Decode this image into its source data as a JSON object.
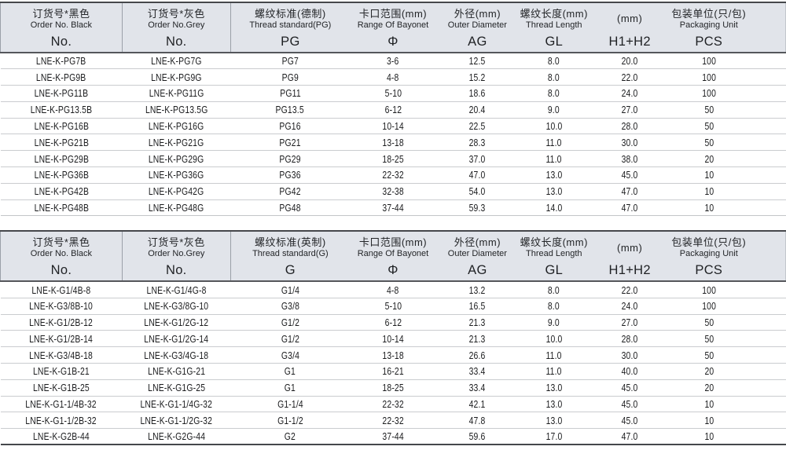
{
  "colors": {
    "header_bg": "#e1e4ea",
    "dark_border": "#45474b",
    "row_line": "#cacccf",
    "text": "#1b1c1e"
  },
  "tables": [
    {
      "name": "pg-thread-table",
      "columns": [
        {
          "cn": "订货号*黑色",
          "en": "Order No. Black",
          "code": "No."
        },
        {
          "cn": "订货号*灰色",
          "en": "Order No.Grey",
          "code": "No."
        },
        {
          "cn": "螺纹标准(德制)",
          "en": "Thread standard(PG)",
          "code": "PG"
        },
        {
          "cn": "卡口范围(mm)",
          "en": "Range Of Bayonet",
          "code": "Φ"
        },
        {
          "cn": "外径(mm)",
          "en": "Outer Diameter",
          "code": "AG"
        },
        {
          "cn": "螺纹长度(mm)",
          "en": "Thread Length",
          "code": "GL"
        },
        {
          "cn": "(mm)",
          "en": "",
          "code": "H1+H2"
        },
        {
          "cn": "包装单位(只/包)",
          "en": "Packaging Unit",
          "code": "PCS"
        }
      ],
      "rows": [
        [
          "LNE-K-PG7B",
          "LNE-K-PG7G",
          "PG7",
          "3-6",
          "12.5",
          "8.0",
          "20.0",
          "100"
        ],
        [
          "LNE-K-PG9B",
          "LNE-K-PG9G",
          "PG9",
          "4-8",
          "15.2",
          "8.0",
          "22.0",
          "100"
        ],
        [
          "LNE-K-PG11B",
          "LNE-K-PG11G",
          "PG11",
          "5-10",
          "18.6",
          "8.0",
          "24.0",
          "100"
        ],
        [
          "LNE-K-PG13.5B",
          "LNE-K-PG13.5G",
          "PG13.5",
          "6-12",
          "20.4",
          "9.0",
          "27.0",
          "50"
        ],
        [
          "LNE-K-PG16B",
          "LNE-K-PG16G",
          "PG16",
          "10-14",
          "22.5",
          "10.0",
          "28.0",
          "50"
        ],
        [
          "LNE-K-PG21B",
          "LNE-K-PG21G",
          "PG21",
          "13-18",
          "28.3",
          "11.0",
          "30.0",
          "50"
        ],
        [
          "LNE-K-PG29B",
          "LNE-K-PG29G",
          "PG29",
          "18-25",
          "37.0",
          "11.0",
          "38.0",
          "20"
        ],
        [
          "LNE-K-PG36B",
          "LNE-K-PG36G",
          "PG36",
          "22-32",
          "47.0",
          "13.0",
          "45.0",
          "10"
        ],
        [
          "LNE-K-PG42B",
          "LNE-K-PG42G",
          "PG42",
          "32-38",
          "54.0",
          "13.0",
          "47.0",
          "10"
        ],
        [
          "LNE-K-PG48B",
          "LNE-K-PG48G",
          "PG48",
          "37-44",
          "59.3",
          "14.0",
          "47.0",
          "10"
        ]
      ]
    },
    {
      "name": "g-thread-table",
      "columns": [
        {
          "cn": "订货号*黑色",
          "en": "Order No. Black",
          "code": "No."
        },
        {
          "cn": "订货号*灰色",
          "en": "Order No.Grey",
          "code": "No."
        },
        {
          "cn": "螺纹标准(英制)",
          "en": "Thread standard(G)",
          "code": "G"
        },
        {
          "cn": "卡口范围(mm)",
          "en": "Range Of Bayonet",
          "code": "Φ"
        },
        {
          "cn": "外径(mm)",
          "en": "Outer Diameter",
          "code": "AG"
        },
        {
          "cn": "螺纹长度(mm)",
          "en": "Thread Length",
          "code": "GL"
        },
        {
          "cn": "(mm)",
          "en": "",
          "code": "H1+H2"
        },
        {
          "cn": "包装单位(只/包)",
          "en": "Packaging Unit",
          "code": "PCS"
        }
      ],
      "rows": [
        [
          "LNE-K-G1/4B-8",
          "LNE-K-G1/4G-8",
          "G1/4",
          "4-8",
          "13.2",
          "8.0",
          "22.0",
          "100"
        ],
        [
          "LNE-K-G3/8B-10",
          "LNE-K-G3/8G-10",
          "G3/8",
          "5-10",
          "16.5",
          "8.0",
          "24.0",
          "100"
        ],
        [
          "LNE-K-G1/2B-12",
          "LNE-K-G1/2G-12",
          "G1/2",
          "6-12",
          "21.3",
          "9.0",
          "27.0",
          "50"
        ],
        [
          "LNE-K-G1/2B-14",
          "LNE-K-G1/2G-14",
          "G1/2",
          "10-14",
          "21.3",
          "10.0",
          "28.0",
          "50"
        ],
        [
          "LNE-K-G3/4B-18",
          "LNE-K-G3/4G-18",
          "G3/4",
          "13-18",
          "26.6",
          "11.0",
          "30.0",
          "50"
        ],
        [
          "LNE-K-G1B-21",
          "LNE-K-G1G-21",
          "G1",
          "16-21",
          "33.4",
          "11.0",
          "40.0",
          "20"
        ],
        [
          "LNE-K-G1B-25",
          "LNE-K-G1G-25",
          "G1",
          "18-25",
          "33.4",
          "13.0",
          "45.0",
          "20"
        ],
        [
          "LNE-K-G1-1/4B-32",
          "LNE-K-G1-1/4G-32",
          "G1-1/4",
          "22-32",
          "42.1",
          "13.0",
          "45.0",
          "10"
        ],
        [
          "LNE-K-G1-1/2B-32",
          "LNE-K-G1-1/2G-32",
          "G1-1/2",
          "22-32",
          "47.8",
          "13.0",
          "45.0",
          "10"
        ],
        [
          "LNE-K-G2B-44",
          "LNE-K-G2G-44",
          "G2",
          "37-44",
          "59.6",
          "17.0",
          "47.0",
          "10"
        ]
      ]
    }
  ]
}
